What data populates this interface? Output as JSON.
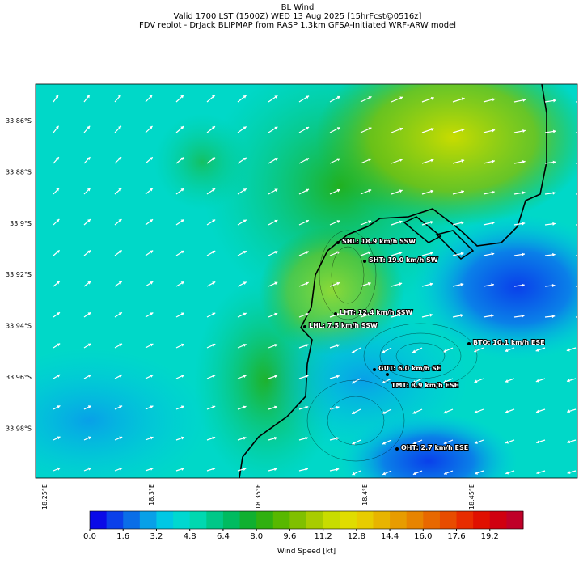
{
  "header": {
    "title": "BL Wind",
    "valid": "Valid 1700 LST (1500Z) WED 13 Aug 2025 [15hrFcst@0516z]",
    "source": "FDV replot - DrJack BLIPMAP from RASP 1.3km GFSA-Initiated WRF-ARW model"
  },
  "map": {
    "lat_ticks": [
      "33.86°S",
      "33.88°S",
      "33.9°S",
      "33.92°S",
      "33.94°S",
      "33.96°S",
      "33.98°S"
    ],
    "lon_ticks": [
      "18.25°E",
      "18.3°E",
      "18.35°E",
      "18.4°E",
      "18.45°E"
    ],
    "stations": [
      "SHL: 18.9 km/h SSW",
      "SHT: 19.0 km/h SW",
      "LHT: 12.4 km/h SSW",
      "LHL: 7.5 km/h SSW",
      "BTO: 10.1 km/h ESE",
      "GUT: 6.0 km/h SE",
      "TMT: 8.9 km/h ESE",
      "OHT: 2.7 km/h ESE"
    ]
  },
  "colorbar": {
    "label": "Wind Speed [kt]",
    "range": [
      0,
      20.8
    ],
    "ticks": [
      {
        "value": 0,
        "label": "0.0"
      },
      {
        "value": 1.6,
        "label": "1.6"
      },
      {
        "value": 3.2,
        "label": "3.2"
      },
      {
        "value": 4.8,
        "label": "4.8"
      },
      {
        "value": 6.4,
        "label": "6.4"
      },
      {
        "value": 8,
        "label": "8.0"
      },
      {
        "value": 9.6,
        "label": "9.6"
      },
      {
        "value": 11.2,
        "label": "11.2"
      },
      {
        "value": 12.8,
        "label": "12.8"
      },
      {
        "value": 14.4,
        "label": "14.4"
      },
      {
        "value": 16,
        "label": "16.0"
      },
      {
        "value": 17.6,
        "label": "17.6"
      },
      {
        "value": 19.2,
        "label": "19.2"
      }
    ],
    "colors": [
      "#0a0ae8",
      "#0a40ea",
      "#0a6ee8",
      "#08a0e8",
      "#00c8e4",
      "#00d8d0",
      "#00d8b0",
      "#00c888",
      "#00bb60",
      "#10b030",
      "#30b010",
      "#58b800",
      "#80c000",
      "#a8cc00",
      "#c8dc00",
      "#e0dc00",
      "#e8cc00",
      "#e8b400",
      "#e89c00",
      "#e88400",
      "#e86800",
      "#e84c00",
      "#e82c00",
      "#e01000",
      "#d00010",
      "#c00028"
    ]
  }
}
